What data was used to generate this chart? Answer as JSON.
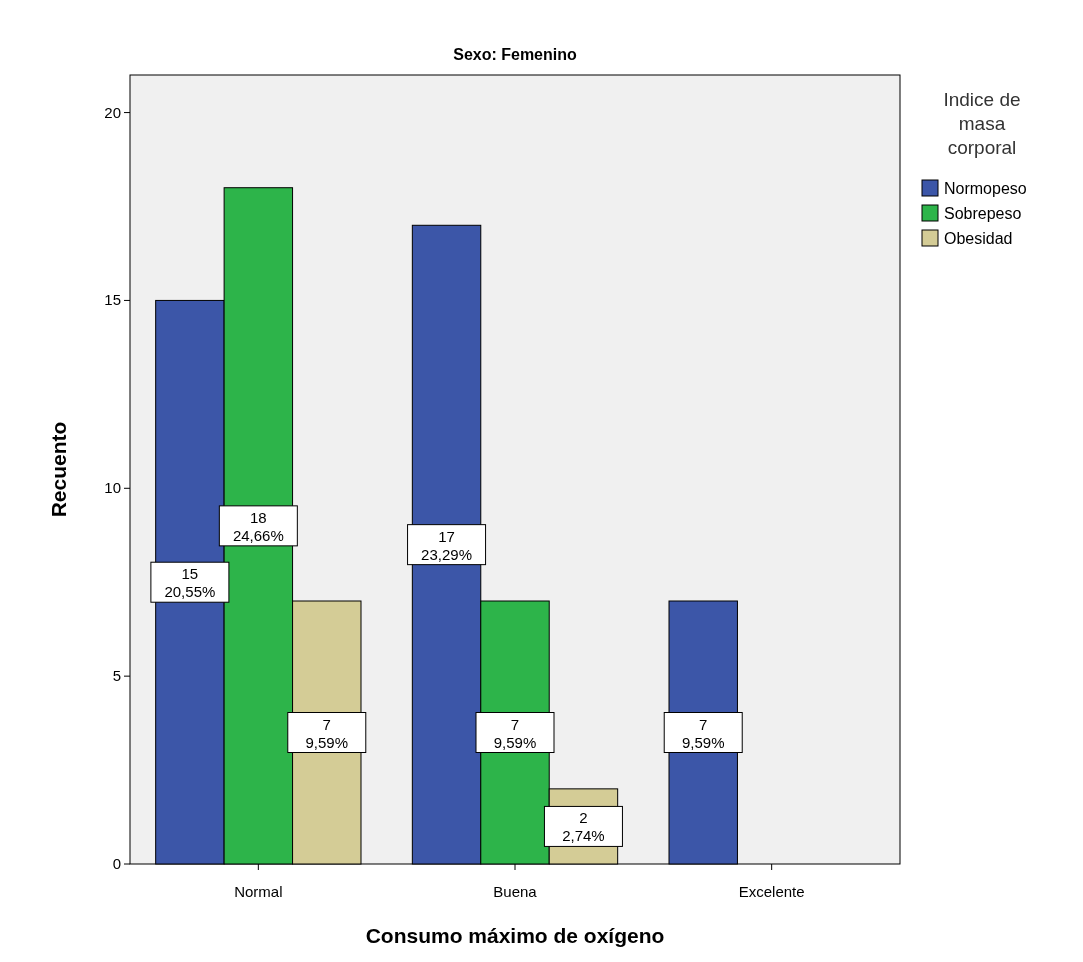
{
  "chart_data": {
    "type": "bar",
    "title": "Sexo: Femenino",
    "xlabel": "Consumo máximo de oxígeno",
    "ylabel": "Recuento",
    "legend_title": "Indice de masa corporal",
    "categories": [
      "Normal",
      "Buena",
      "Excelente"
    ],
    "series": [
      {
        "name": "Normopeso",
        "color": "#3c56a8",
        "values": [
          15,
          17,
          7
        ],
        "value_labels": [
          "15\n20,55%",
          "17\n23,29%",
          "7\n9,59%"
        ]
      },
      {
        "name": "Sobrepeso",
        "color": "#2db44a",
        "values": [
          18,
          7,
          null
        ],
        "value_labels": [
          "18\n24,66%",
          "7\n9,59%",
          null
        ]
      },
      {
        "name": "Obesidad",
        "color": "#d4cc96",
        "values": [
          7,
          2,
          null
        ],
        "value_labels": [
          "7\n9,59%",
          "2\n2,74%",
          null
        ]
      }
    ],
    "ylim": [
      0,
      21
    ],
    "yticks": [
      0,
      5,
      10,
      15,
      20
    ],
    "grid": false,
    "legend": "right"
  }
}
